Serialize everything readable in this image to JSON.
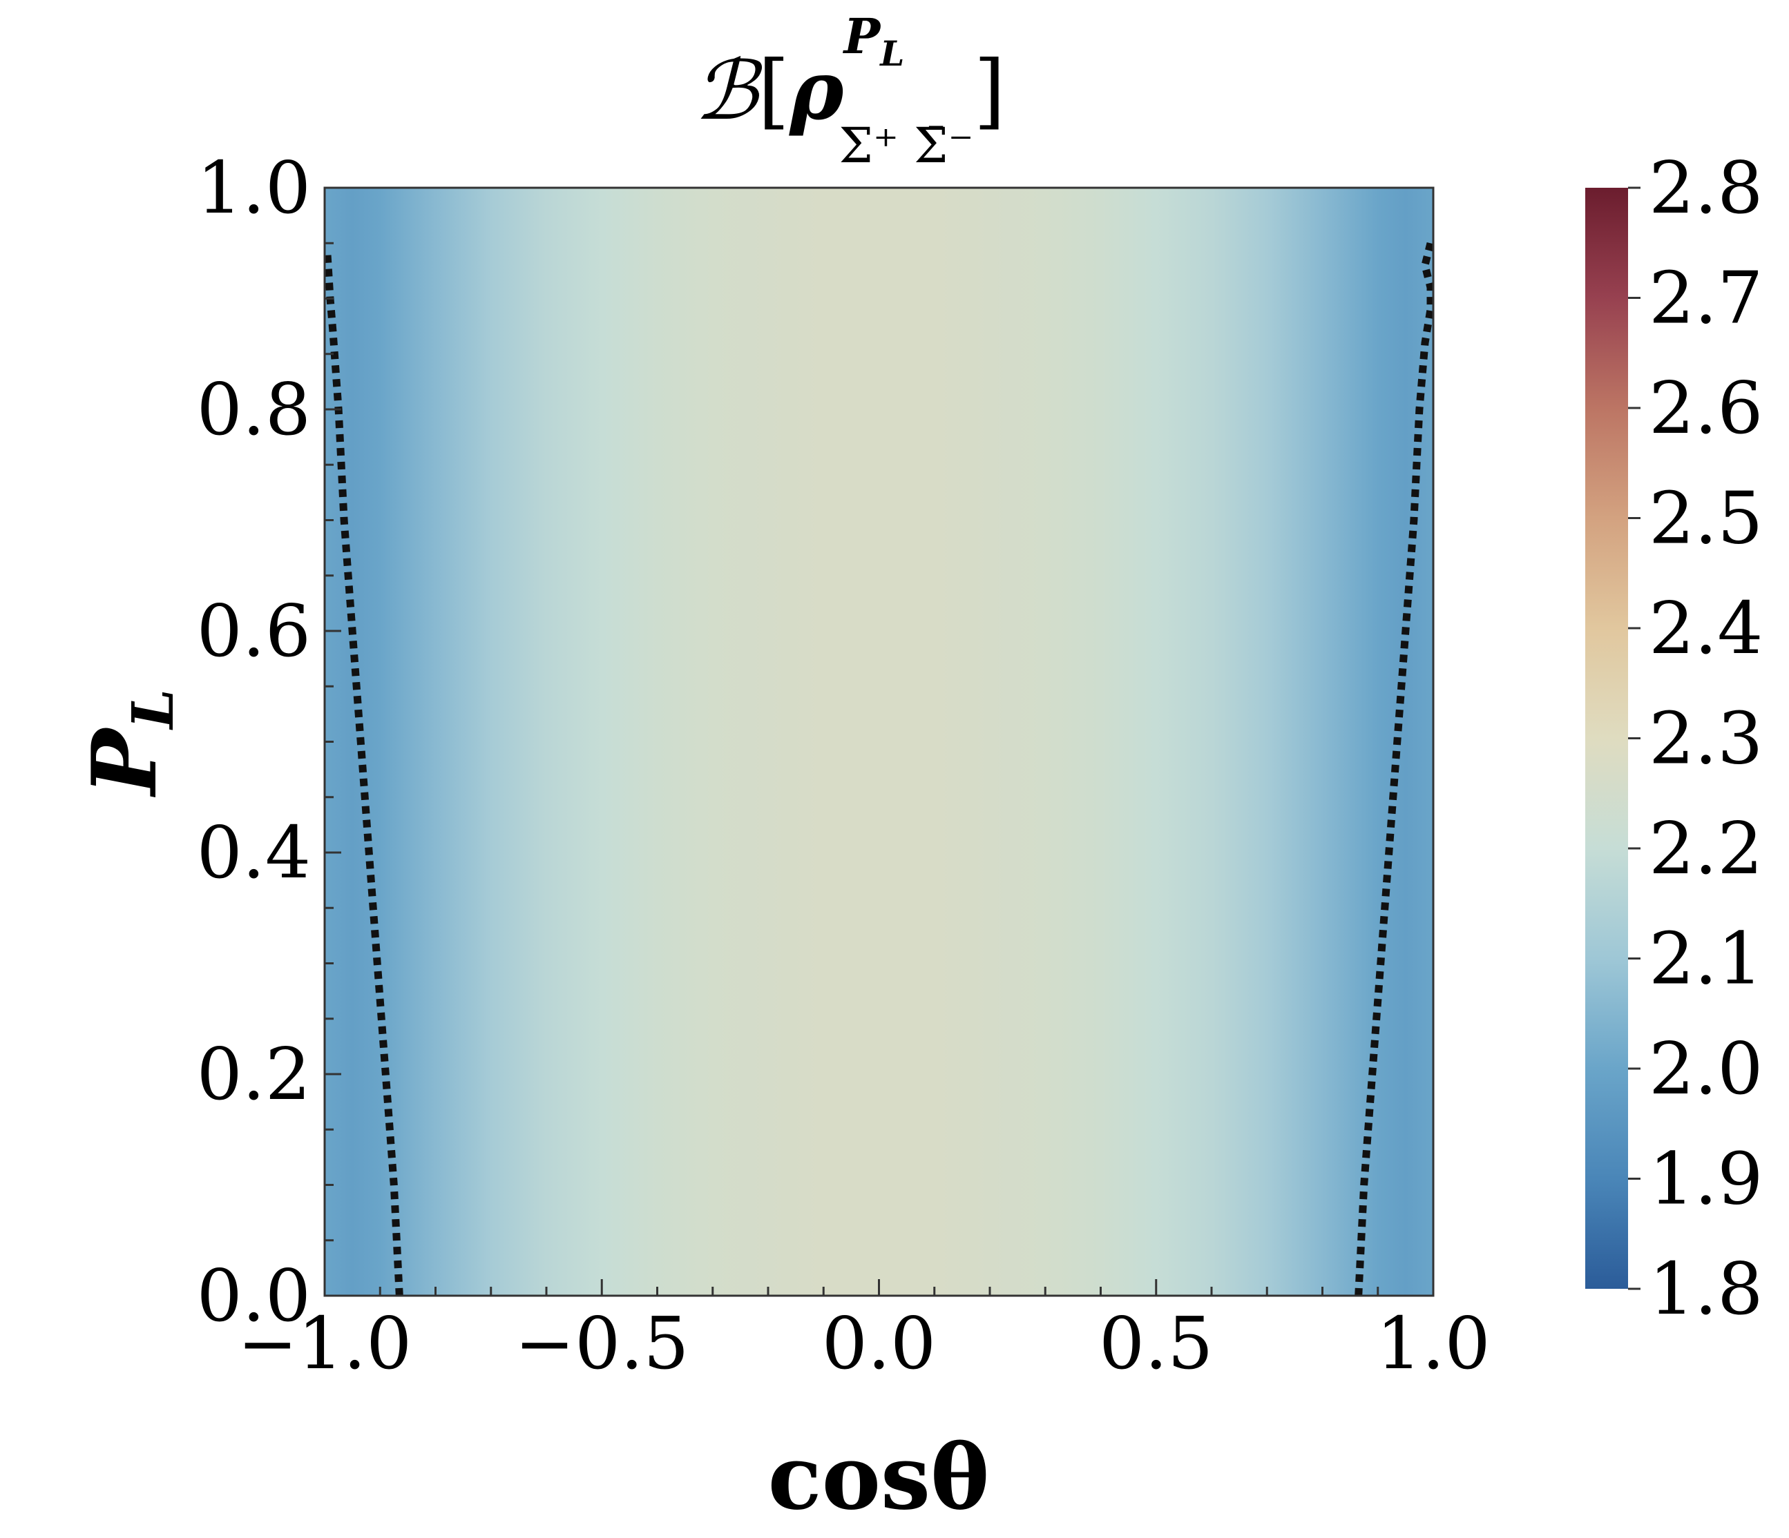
{
  "chart_data": {
    "type": "heatmap",
    "title": {
      "symbol": "ℬ",
      "open": "[",
      "rho": "ρ",
      "superscript": "P",
      "superscript_sub": "L",
      "subscript": "Σ⁺ Σ̄⁻",
      "close": "]"
    },
    "xlabel": "cosθ",
    "ylabel": {
      "main": "P",
      "sub": "L"
    },
    "xlim": [
      -1.0,
      1.0
    ],
    "ylim": [
      0.0,
      1.0
    ],
    "xticks": [
      -1.0,
      -0.5,
      0.0,
      0.5,
      1.0
    ],
    "xtick_labels": [
      "−1.0",
      "−0.5",
      "0.0",
      "0.5",
      "1.0"
    ],
    "yticks": [
      0.0,
      0.2,
      0.4,
      0.6,
      0.8,
      1.0
    ],
    "ytick_labels": [
      "0.0",
      "0.2",
      "0.4",
      "0.6",
      "0.8",
      "1.0"
    ],
    "colorbar": {
      "min": 1.8,
      "max": 2.8,
      "ticks": [
        1.8,
        1.9,
        2.0,
        2.1,
        2.2,
        2.3,
        2.4,
        2.5,
        2.6,
        2.7,
        2.8
      ],
      "tick_labels": [
        "1.8",
        "1.9",
        "2.0",
        "2.1",
        "2.2",
        "2.3",
        "2.4",
        "2.5",
        "2.6",
        "2.7",
        "2.8"
      ],
      "colormap_stops": [
        "#2b5c99",
        "#4a86b8",
        "#6aa5c9",
        "#9ec7d6",
        "#c6ddd6",
        "#dfdcc0",
        "#e1c79e",
        "#d3a280",
        "#bc7564",
        "#974150",
        "#6b1d2e"
      ]
    },
    "field_profile_vs_costheta": {
      "x": [
        -1.0,
        -0.95,
        -0.9,
        -0.8,
        -0.7,
        -0.6,
        -0.5,
        -0.4,
        -0.3,
        -0.2,
        -0.1,
        0.0,
        0.1,
        0.2,
        0.3,
        0.4,
        0.5,
        0.6,
        0.7,
        0.8,
        0.9,
        0.95,
        1.0
      ],
      "values": [
        2.0,
        1.98,
        2.0,
        2.06,
        2.12,
        2.17,
        2.2,
        2.23,
        2.25,
        2.26,
        2.27,
        2.27,
        2.27,
        2.26,
        2.25,
        2.23,
        2.2,
        2.17,
        2.12,
        2.06,
        2.0,
        1.98,
        2.0
      ],
      "peak_near_top": 2.3
    },
    "boundary_curves": {
      "style": "dotted",
      "level": 2.0,
      "left": {
        "x": [
          -0.865,
          -0.875,
          -0.89,
          -0.905,
          -0.92,
          -0.935,
          -0.95,
          -0.965,
          -0.975,
          -0.985,
          -0.99,
          -0.995
        ],
        "y": [
          0.0,
          0.1,
          0.2,
          0.3,
          0.4,
          0.5,
          0.6,
          0.7,
          0.8,
          0.87,
          0.9,
          0.94
        ]
      },
      "right": {
        "x": [
          0.865,
          0.875,
          0.89,
          0.905,
          0.92,
          0.935,
          0.95,
          0.965,
          0.975,
          0.985,
          0.995,
          0.995,
          0.985,
          0.995
        ],
        "y": [
          0.0,
          0.1,
          0.2,
          0.3,
          0.4,
          0.5,
          0.6,
          0.7,
          0.8,
          0.86,
          0.89,
          0.91,
          0.93,
          0.95
        ]
      }
    }
  }
}
